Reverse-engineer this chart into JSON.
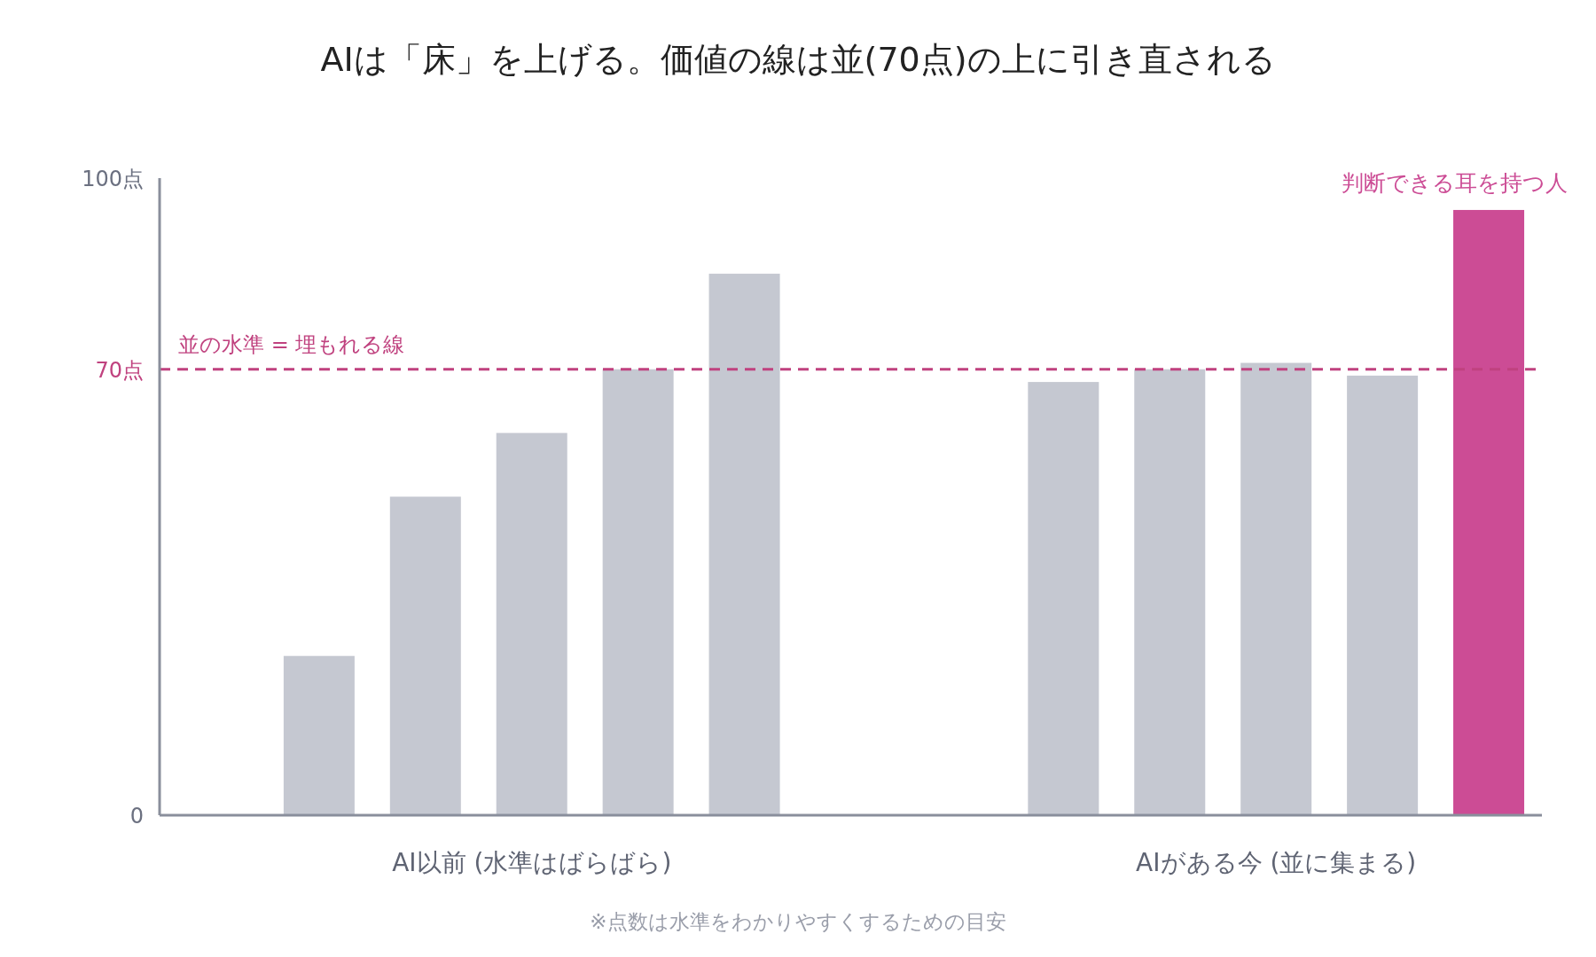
{
  "chart_data": {
    "type": "bar",
    "title": "AIは「床」を上げる。価値の線は並(70点)の上に引き直される",
    "categories": [
      null,
      null,
      null,
      null,
      null,
      null,
      null,
      null,
      null,
      null,
      null,
      null,
      null
    ],
    "values": [
      null,
      25,
      50,
      60,
      70,
      85,
      null,
      null,
      68,
      70,
      71,
      69,
      95
    ],
    "colors": [
      null,
      "#c5c8d1",
      "#c5c8d1",
      "#c5c8d1",
      "#c5c8d1",
      "#c5c8d1",
      null,
      null,
      "#c5c8d1",
      "#c5c8d1",
      "#c5c8d1",
      "#c5c8d1",
      "#cc4c95"
    ],
    "ylim": [
      0,
      100
    ],
    "yticks": [
      0,
      {
        "value": 70,
        "label": "70点"
      },
      {
        "value": 100,
        "label": "100点"
      }
    ],
    "ref_lines": [
      {
        "axis": "y",
        "value": 70,
        "label": "並の水準 = 埋もれる線",
        "color": "#c0427f",
        "line_style": "dashed"
      }
    ],
    "annotations": [
      {
        "text": "判断できる耳を持つ人",
        "y": 95
      },
      "AI以前 (水準はばらばら)",
      "AIがある今 (並に集まる)",
      "※点数は水準をわかりやすくするための目安"
    ]
  }
}
